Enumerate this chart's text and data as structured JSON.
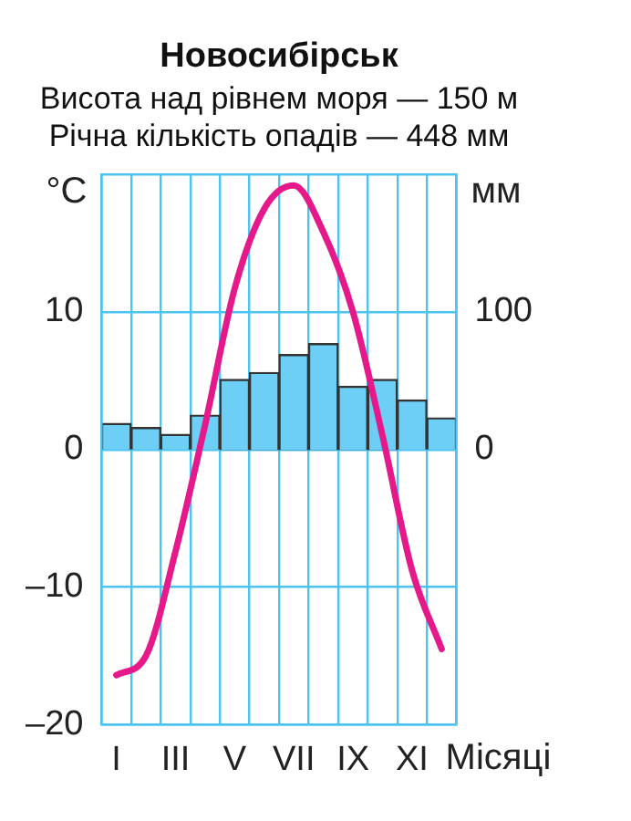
{
  "chart_data": {
    "type": "bar",
    "title": "Новосибірськ",
    "subtitle": "Висота над рівнем моря — 150 м\nРічна кількість опадів — 448 мм",
    "xlabel": "Місяці",
    "ylabel": "°C",
    "y2label": "мм",
    "categories": [
      "I",
      null,
      "III",
      null,
      "V",
      null,
      "VII",
      null,
      "IX",
      null,
      "XI",
      null
    ],
    "series": [
      {
        "type": "bar",
        "axis": "y2",
        "color": "#6dcff6",
        "values": [
          19,
          16,
          11,
          25,
          51,
          56,
          69,
          77,
          46,
          51,
          36,
          23
        ]
      },
      {
        "type": "line",
        "color": "#e6198a",
        "values": [
          -16.4,
          -15,
          -7.4,
          1.8,
          11.7,
          17.5,
          19.2,
          15.8,
          10,
          1,
          -8.8,
          -14.5
        ]
      }
    ],
    "ylim": [
      -20,
      20
    ],
    "yticks": [
      {
        "value": -20,
        "label": "–20"
      },
      {
        "value": -10,
        "label": "–10"
      },
      0,
      10
    ],
    "y2lim": [
      -200,
      200
    ],
    "y2ticks": [
      0,
      100
    ],
    "grid": true,
    "marker": "none"
  }
}
